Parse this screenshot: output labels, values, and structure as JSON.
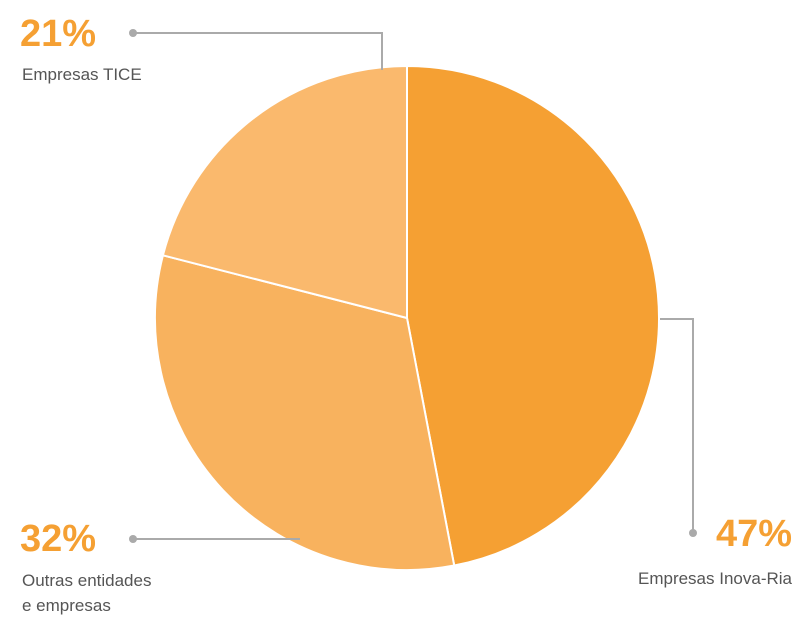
{
  "chart_data": {
    "type": "pie",
    "title": "",
    "slices": [
      {
        "label": "Empresas Inova-Ria",
        "value": 47,
        "value_label": "47%",
        "color": "#f5a033"
      },
      {
        "label": "Outras entidades e empresas",
        "label_lines": [
          "Outras entidades",
          "e empresas"
        ],
        "value": 32,
        "value_label": "32%",
        "color": "#f8b25e"
      },
      {
        "label": "Empresas TICE",
        "value": 21,
        "value_label": "21%",
        "color": "#fab96d"
      }
    ],
    "legend": "none",
    "colors": {
      "value_text": "#f5a033",
      "label_text": "#555555",
      "leader_line": "#aaaaaa",
      "slice_border": "#ffffff"
    }
  }
}
